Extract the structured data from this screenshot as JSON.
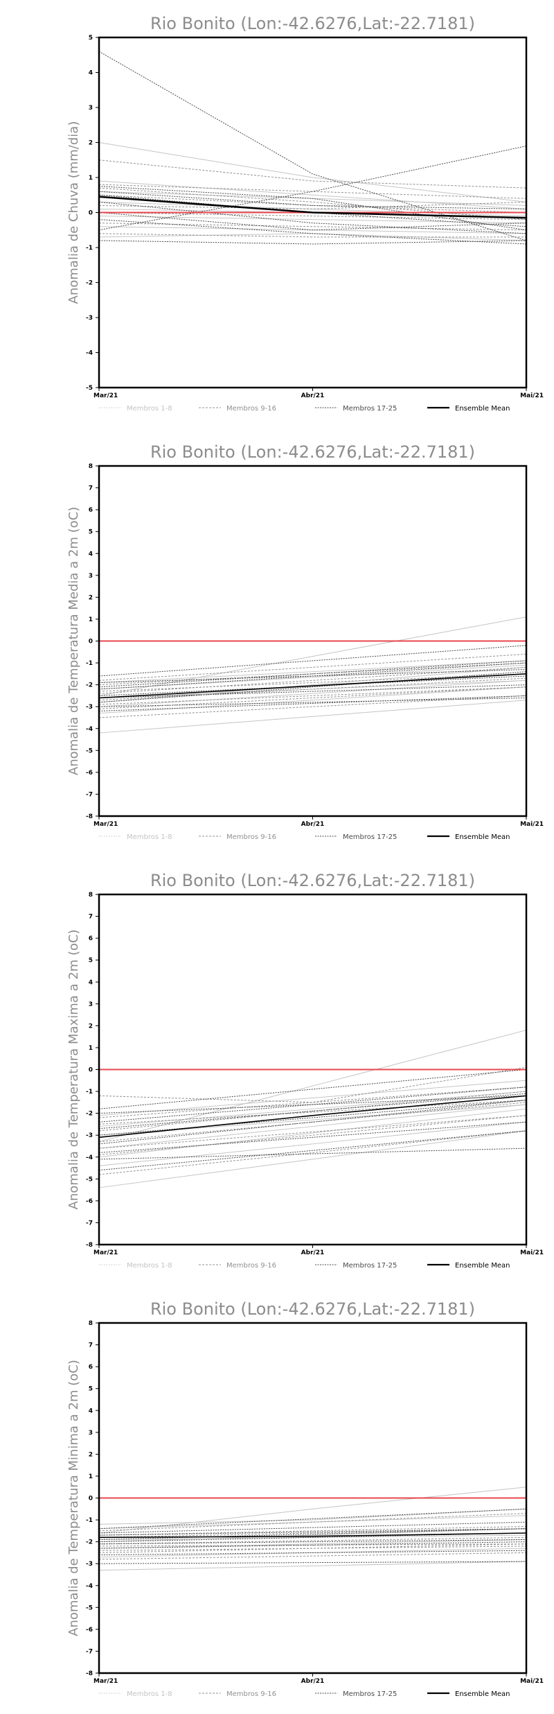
{
  "colors": {
    "axis": "#000000",
    "zero_line": "#e8474e",
    "title": "#8c8c8c",
    "members_1_8": "#c4c4c4",
    "members_9_16": "#909090",
    "members_17_25": "#4a4a4a",
    "ensemble_mean": "#000000"
  },
  "legend": [
    "Membros 1-8",
    "Membros 9-16",
    "Membros 17-25",
    "Ensemble Mean"
  ],
  "chart_data": [
    {
      "type": "line",
      "title": "Rio Bonito (Lon:-42.6276,Lat:-22.7181)",
      "ylabel": "Anomalia de Chuva (mm/dia)",
      "x": [
        "Mar/21",
        "Abr/21",
        "Mai/21"
      ],
      "ylim": [
        -5,
        5
      ],
      "yticks": [
        -5,
        -4,
        -3,
        -2,
        -1,
        0,
        1,
        2,
        3,
        4,
        5
      ],
      "legend": [
        "Membros 1-8",
        "Membros 9-16",
        "Membros 17-25",
        "Ensemble Mean"
      ],
      "ensemble_mean": [
        0.45,
        0.0,
        -0.15
      ],
      "series": [
        {
          "group": 0,
          "values": [
            2.0,
            1.0,
            0.3
          ]
        },
        {
          "group": 0,
          "values": [
            0.9,
            0.5,
            0.1
          ]
        },
        {
          "group": 0,
          "values": [
            0.3,
            0.1,
            -0.1
          ]
        },
        {
          "group": 0,
          "values": [
            -0.1,
            -0.2,
            -0.3
          ]
        },
        {
          "group": 0,
          "values": [
            -0.4,
            -0.5,
            -0.6
          ]
        },
        {
          "group": 0,
          "values": [
            0.6,
            0.4,
            0.2
          ]
        },
        {
          "group": 0,
          "values": [
            -0.7,
            -0.6,
            -0.8
          ]
        },
        {
          "group": 0,
          "values": [
            0.1,
            0.0,
            0.0
          ]
        },
        {
          "group": 1,
          "values": [
            1.5,
            0.9,
            0.7
          ]
        },
        {
          "group": 1,
          "values": [
            0.8,
            0.6,
            0.4
          ]
        },
        {
          "group": 1,
          "values": [
            0.5,
            0.2,
            0.0
          ]
        },
        {
          "group": 1,
          "values": [
            0.0,
            -0.1,
            -0.2
          ]
        },
        {
          "group": 1,
          "values": [
            -0.3,
            -0.4,
            -0.5
          ]
        },
        {
          "group": 1,
          "values": [
            0.7,
            0.3,
            -0.2
          ]
        },
        {
          "group": 1,
          "values": [
            -0.6,
            -0.7,
            -0.7
          ]
        },
        {
          "group": 1,
          "values": [
            0.2,
            0.1,
            0.3
          ]
        },
        {
          "group": 2,
          "values": [
            4.6,
            1.1,
            -0.8
          ]
        },
        {
          "group": 2,
          "values": [
            -0.5,
            0.6,
            1.9
          ]
        },
        {
          "group": 2,
          "values": [
            0.75,
            0.4,
            -0.5
          ]
        },
        {
          "group": 2,
          "values": [
            0.3,
            -0.3,
            -0.6
          ]
        },
        {
          "group": 2,
          "values": [
            -0.8,
            -0.9,
            -0.8
          ]
        },
        {
          "group": 2,
          "values": [
            0.0,
            -0.5,
            -0.3
          ]
        },
        {
          "group": 2,
          "values": [
            0.5,
            0.0,
            -0.4
          ]
        },
        {
          "group": 2,
          "values": [
            -0.2,
            -0.6,
            -0.9
          ]
        },
        {
          "group": 2,
          "values": [
            0.6,
            0.2,
            0.1
          ]
        }
      ]
    },
    {
      "type": "line",
      "title": "Rio Bonito (Lon:-42.6276,Lat:-22.7181)",
      "ylabel": "Anomalia de Temperatura Media a 2m (oC)",
      "x": [
        "Mar/21",
        "Abr/21",
        "Mai/21"
      ],
      "ylim": [
        -8,
        8
      ],
      "yticks": [
        -8,
        -7,
        -6,
        -5,
        -4,
        -3,
        -2,
        -1,
        0,
        1,
        2,
        3,
        4,
        5,
        6,
        7,
        8
      ],
      "legend": [
        "Membros 1-8",
        "Membros 9-16",
        "Membros 17-25",
        "Ensemble Mean"
      ],
      "ensemble_mean": [
        -2.6,
        -2.05,
        -1.5
      ],
      "series": [
        {
          "group": 0,
          "values": [
            -2.5,
            -0.7,
            1.1
          ]
        },
        {
          "group": 0,
          "values": [
            -4.2,
            -3.45,
            -2.7
          ]
        },
        {
          "group": 0,
          "values": [
            -3.0,
            -2.4,
            -1.8
          ]
        },
        {
          "group": 0,
          "values": [
            -2.2,
            -1.65,
            -1.1
          ]
        },
        {
          "group": 0,
          "values": [
            -2.8,
            -2.0,
            -1.2
          ]
        },
        {
          "group": 0,
          "values": [
            -3.3,
            -2.7,
            -2.1
          ]
        },
        {
          "group": 0,
          "values": [
            -1.9,
            -1.4,
            -0.9
          ]
        },
        {
          "group": 0,
          "values": [
            -2.6,
            -2.2,
            -1.8
          ]
        },
        {
          "group": 1,
          "values": [
            -1.8,
            -1.2,
            -0.6
          ]
        },
        {
          "group": 1,
          "values": [
            -2.4,
            -1.8,
            -1.2
          ]
        },
        {
          "group": 1,
          "values": [
            -3.1,
            -2.6,
            -2.1
          ]
        },
        {
          "group": 1,
          "values": [
            -2.0,
            -1.5,
            -1.0
          ]
        },
        {
          "group": 1,
          "values": [
            -2.7,
            -2.2,
            -1.7
          ]
        },
        {
          "group": 1,
          "values": [
            -3.5,
            -3.0,
            -2.5
          ]
        },
        {
          "group": 1,
          "values": [
            -2.3,
            -1.9,
            -1.5
          ]
        },
        {
          "group": 1,
          "values": [
            -2.9,
            -2.5,
            -2.1
          ]
        },
        {
          "group": 2,
          "values": [
            -1.6,
            -0.9,
            -0.2
          ]
        },
        {
          "group": 2,
          "values": [
            -2.1,
            -1.5,
            -0.9
          ]
        },
        {
          "group": 2,
          "values": [
            -2.5,
            -2.05,
            -1.6
          ]
        },
        {
          "group": 2,
          "values": [
            -3.0,
            -2.8,
            -2.6
          ]
        },
        {
          "group": 2,
          "values": [
            -2.2,
            -1.6,
            -1.0
          ]
        },
        {
          "group": 2,
          "values": [
            -3.2,
            -2.85,
            -2.5
          ]
        },
        {
          "group": 2,
          "values": [
            -2.8,
            -2.1,
            -1.4
          ]
        },
        {
          "group": 2,
          "values": [
            -1.9,
            -1.6,
            -1.3
          ]
        },
        {
          "group": 2,
          "values": [
            -2.6,
            -2.3,
            -2.0
          ]
        }
      ]
    },
    {
      "type": "line",
      "title": "Rio Bonito (Lon:-42.6276,Lat:-22.7181)",
      "ylabel": "Anomalia de Temperatura Maxima a 2m (oC)",
      "x": [
        "Mar/21",
        "Abr/21",
        "Mai/21"
      ],
      "ylim": [
        -8,
        8
      ],
      "yticks": [
        -8,
        -7,
        -6,
        -5,
        -4,
        -3,
        -2,
        -1,
        0,
        1,
        2,
        3,
        4,
        5,
        6,
        7,
        8
      ],
      "legend": [
        "Membros 1-8",
        "Membros 9-16",
        "Membros 17-25",
        "Ensemble Mean"
      ],
      "ensemble_mean": [
        -3.1,
        -2.1,
        -1.2
      ],
      "series": [
        {
          "group": 0,
          "values": [
            -3.3,
            -0.75,
            1.8
          ]
        },
        {
          "group": 0,
          "values": [
            -5.4,
            -4.1,
            -2.8
          ]
        },
        {
          "group": 0,
          "values": [
            -4.0,
            -2.9,
            -1.8
          ]
        },
        {
          "group": 0,
          "values": [
            -2.6,
            -1.8,
            -1.0
          ]
        },
        {
          "group": 0,
          "values": [
            -3.6,
            -2.6,
            -1.6
          ]
        },
        {
          "group": 0,
          "values": [
            -4.4,
            -3.4,
            -2.4
          ]
        },
        {
          "group": 0,
          "values": [
            -2.1,
            -1.3,
            -0.5
          ]
        },
        {
          "group": 0,
          "values": [
            -3.0,
            -2.3,
            -1.6
          ]
        },
        {
          "group": 1,
          "values": [
            -1.2,
            -1.5,
            0.1
          ]
        },
        {
          "group": 1,
          "values": [
            -2.8,
            -1.9,
            -1.0
          ]
        },
        {
          "group": 1,
          "values": [
            -3.9,
            -3.0,
            -2.1
          ]
        },
        {
          "group": 1,
          "values": [
            -2.2,
            -1.5,
            -0.8
          ]
        },
        {
          "group": 1,
          "values": [
            -3.3,
            -2.4,
            -1.5
          ]
        },
        {
          "group": 1,
          "values": [
            -4.8,
            -3.8,
            -2.8
          ]
        },
        {
          "group": 1,
          "values": [
            -2.5,
            -1.95,
            -1.4
          ]
        },
        {
          "group": 1,
          "values": [
            -3.6,
            -2.85,
            -2.1
          ]
        },
        {
          "group": 2,
          "values": [
            -1.8,
            -0.9,
            0.0
          ]
        },
        {
          "group": 2,
          "values": [
            -2.4,
            -1.6,
            -0.8
          ]
        },
        {
          "group": 2,
          "values": [
            -3.0,
            -2.2,
            -1.4
          ]
        },
        {
          "group": 2,
          "values": [
            -4.1,
            -3.85,
            -3.6
          ]
        },
        {
          "group": 2,
          "values": [
            -2.7,
            -1.9,
            -1.1
          ]
        },
        {
          "group": 2,
          "values": [
            -3.8,
            -3.1,
            -2.4
          ]
        },
        {
          "group": 2,
          "values": [
            -3.4,
            -2.4,
            -1.4
          ]
        },
        {
          "group": 2,
          "values": [
            -2.0,
            -1.6,
            -1.2
          ]
        },
        {
          "group": 2,
          "values": [
            -4.6,
            -3.7,
            -2.8
          ]
        }
      ]
    },
    {
      "type": "line",
      "title": "Rio Bonito (Lon:-42.6276,Lat:-22.7181)",
      "ylabel": "Anomalia de Temperatura Minima a 2m (oC)",
      "x": [
        "Mar/21",
        "Abr/21",
        "Mai/21"
      ],
      "ylim": [
        -8,
        8
      ],
      "yticks": [
        -8,
        -7,
        -6,
        -5,
        -4,
        -3,
        -2,
        -1,
        0,
        1,
        2,
        3,
        4,
        5,
        6,
        7,
        8
      ],
      "legend": [
        "Membros 1-8",
        "Membros 9-16",
        "Membros 17-25",
        "Ensemble Mean"
      ],
      "ensemble_mean": [
        -1.8,
        -1.75,
        -1.6
      ],
      "series": [
        {
          "group": 0,
          "values": [
            -1.6,
            -0.5,
            0.5
          ]
        },
        {
          "group": 0,
          "values": [
            -3.3,
            -3.1,
            -2.9
          ]
        },
        {
          "group": 0,
          "values": [
            -2.0,
            -1.7,
            -1.4
          ]
        },
        {
          "group": 0,
          "values": [
            -1.4,
            -1.1,
            -0.8
          ]
        },
        {
          "group": 0,
          "values": [
            -2.3,
            -2.1,
            -1.9
          ]
        },
        {
          "group": 0,
          "values": [
            -2.7,
            -2.5,
            -2.3
          ]
        },
        {
          "group": 0,
          "values": [
            -1.2,
            -1.0,
            -0.5
          ]
        },
        {
          "group": 0,
          "values": [
            -1.9,
            -1.8,
            -1.7
          ]
        },
        {
          "group": 1,
          "values": [
            -1.5,
            -1.1,
            -0.7
          ]
        },
        {
          "group": 1,
          "values": [
            -2.1,
            -1.95,
            -1.8
          ]
        },
        {
          "group": 1,
          "values": [
            -2.5,
            -2.3,
            -2.1
          ]
        },
        {
          "group": 1,
          "values": [
            -1.7,
            -1.5,
            -1.3
          ]
        },
        {
          "group": 1,
          "values": [
            -2.2,
            -2.15,
            -2.1
          ]
        },
        {
          "group": 1,
          "values": [
            -2.8,
            -2.65,
            -2.5
          ]
        },
        {
          "group": 1,
          "values": [
            -1.8,
            -1.6,
            -1.4
          ]
        },
        {
          "group": 1,
          "values": [
            -2.4,
            -2.3,
            -2.2
          ]
        },
        {
          "group": 2,
          "values": [
            -1.4,
            -0.95,
            -0.5
          ]
        },
        {
          "group": 2,
          "values": [
            -1.6,
            -1.35,
            -1.1
          ]
        },
        {
          "group": 2,
          "values": [
            -2.0,
            -1.8,
            -1.6
          ]
        },
        {
          "group": 2,
          "values": [
            -3.0,
            -2.95,
            -2.9
          ]
        },
        {
          "group": 2,
          "values": [
            -1.9,
            -1.65,
            -1.4
          ]
        },
        {
          "group": 2,
          "values": [
            -2.6,
            -2.5,
            -2.4
          ]
        },
        {
          "group": 2,
          "values": [
            -2.3,
            -2.15,
            -2.0
          ]
        },
        {
          "group": 2,
          "values": [
            -1.7,
            -1.55,
            -1.4
          ]
        },
        {
          "group": 2,
          "values": [
            -2.1,
            -2.0,
            -1.9
          ]
        }
      ]
    }
  ]
}
